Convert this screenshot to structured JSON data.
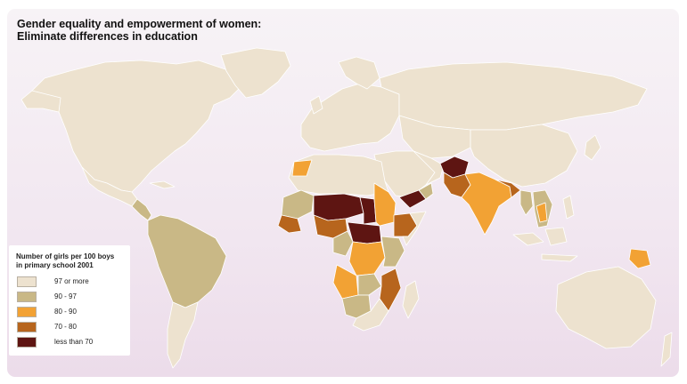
{
  "map": {
    "title_line1": "Gender equality and empowerment of women:",
    "title_line2": "Eliminate differences in education"
  },
  "legend": {
    "title_line1": "Number of girls per 100 boys",
    "title_line2": "in primary school 2001",
    "items": [
      {
        "label": "97 or more",
        "color": "#ede2cf"
      },
      {
        "label": "90 - 97",
        "color": "#c9b886"
      },
      {
        "label": "80 - 90",
        "color": "#f2a234"
      },
      {
        "label": "70 - 80",
        "color": "#b7651d"
      },
      {
        "label": "less than 70",
        "color": "#5e1512"
      }
    ]
  },
  "colors": {
    "ocean_top": "#f7f3f6",
    "ocean_bottom": "#ecdcea",
    "no_data": "#ede2cf"
  }
}
